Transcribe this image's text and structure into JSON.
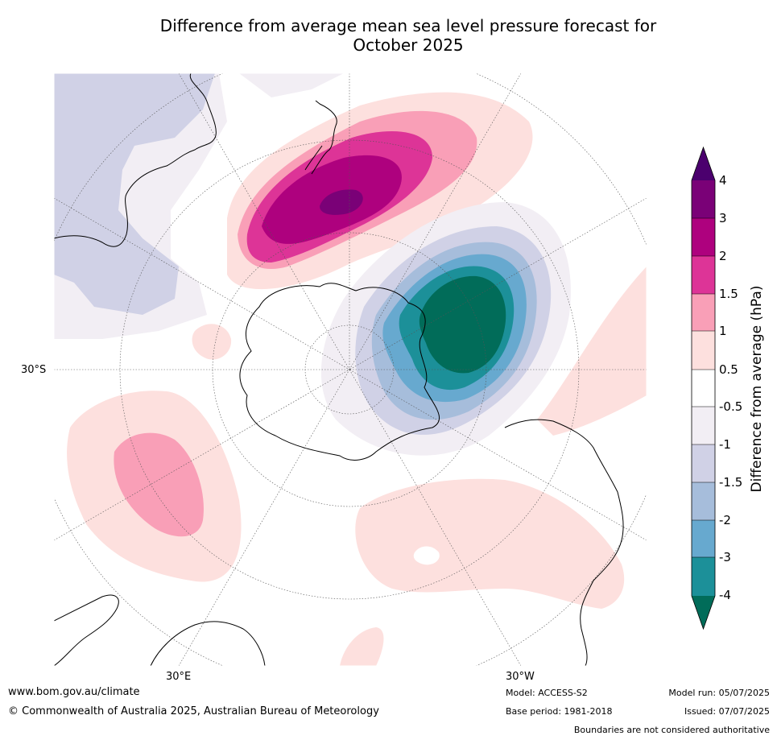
{
  "title": "Difference from average mean sea level pressure forecast for October 2025",
  "title_line1": "Difference from average mean sea level pressure forecast for",
  "title_line2": "October 2025",
  "graticule_labels": {
    "lat_30s": "30°S",
    "lon_30e": "30°E",
    "lon_30w": "30°W"
  },
  "colorbar": {
    "label": "Difference from average (hPa)",
    "ticks": [
      "4",
      "3",
      "2",
      "1.5",
      "1",
      "0.5",
      "-0.5",
      "-1",
      "-1.5",
      "-2",
      "-3",
      "-4"
    ],
    "colors": {
      "gt4": "#4b006e",
      "3_4": "#7a0177",
      "2_3": "#ae017e",
      "1.5_2": "#dd3497",
      "1_1.5": "#f99fb7",
      "0.5_1": "#fde0de",
      "neutral": "#ffffff",
      "-1_-0.5": "#f2eef4",
      "-1.5_-1": "#d0d1e6",
      "-2_-1.5": "#a6bddb",
      "-3_-2": "#67a9cf",
      "-4_-3": "#1c9099",
      "lt-4": "#016c59"
    }
  },
  "footer": {
    "website": "www.bom.gov.au/climate",
    "copyright": "© Commonwealth of Australia 2025, Australian Bureau of Meteorology",
    "model": "Model: ACCESS-S2",
    "base_period": "Base period: 1981-2018",
    "model_run": "Model run: 05/07/2025",
    "issued": "Issued: 07/07/2025",
    "disclaimer": "Boundaries are not considered authoritative"
  }
}
